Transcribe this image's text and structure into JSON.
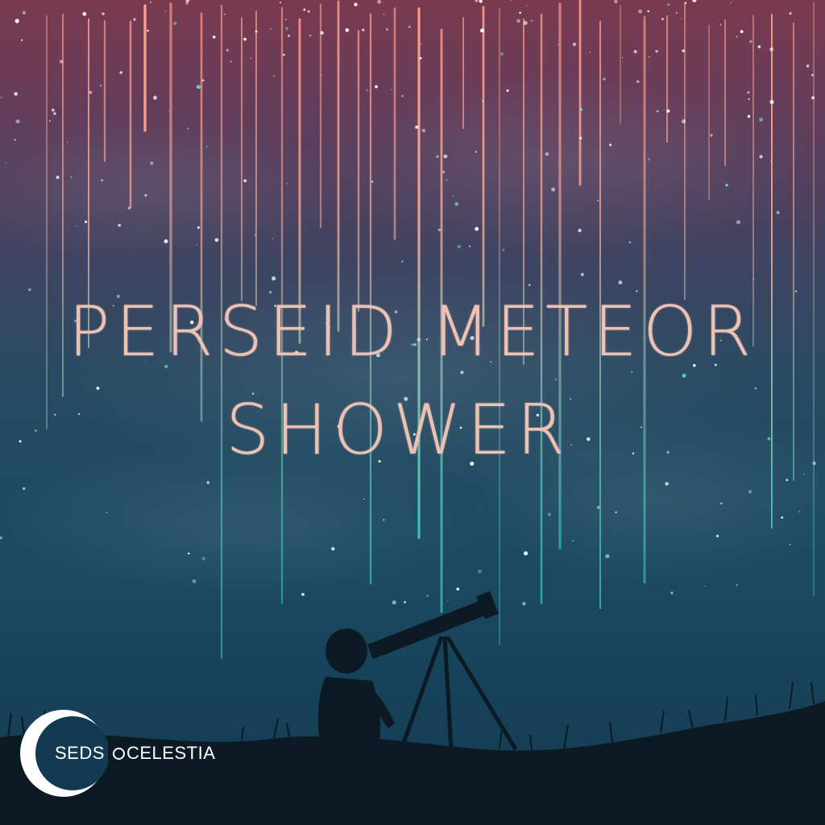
{
  "title": {
    "line1": "PERSEID METEOR",
    "line2": "SHOWER"
  },
  "logo": {
    "left_word": "SEDS",
    "right_word": "CELESTIA"
  },
  "colors": {
    "title_text": "#eec2b3",
    "sky_top": "#7a3a4e",
    "sky_bottom": "#133a50",
    "meteor_warm": "#f0a08c",
    "meteor_cool": "#3fc3b8",
    "silhouette": "#0c1a24"
  }
}
